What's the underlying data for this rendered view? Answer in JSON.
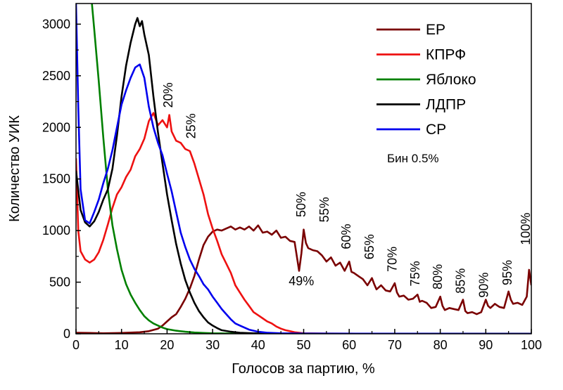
{
  "chart_data": {
    "type": "line",
    "title": "",
    "xlabel": "Голосов за партию, %",
    "ylabel": "Количество УИК",
    "xlim": [
      0,
      100
    ],
    "ylim": [
      0,
      3200
    ],
    "xticks": [
      "0",
      "10",
      "20",
      "30",
      "40",
      "50",
      "60",
      "70",
      "80",
      "90",
      "100"
    ],
    "yticks": [
      "0",
      "500",
      "1000",
      "1500",
      "2000",
      "2500",
      "3000"
    ],
    "grid": false,
    "legend_position": "top-right",
    "bin_note": "Бин 0.5%",
    "series": [
      {
        "name": "ЕР",
        "color": "#7a0000",
        "points": [
          [
            0,
            10
          ],
          [
            3,
            8
          ],
          [
            6,
            5
          ],
          [
            10,
            8
          ],
          [
            14,
            15
          ],
          [
            16,
            25
          ],
          [
            18,
            50
          ],
          [
            19,
            80
          ],
          [
            20,
            120
          ],
          [
            21,
            160
          ],
          [
            22,
            190
          ],
          [
            23,
            260
          ],
          [
            24,
            340
          ],
          [
            25,
            440
          ],
          [
            26,
            560
          ],
          [
            27,
            720
          ],
          [
            28,
            860
          ],
          [
            29,
            940
          ],
          [
            30,
            990
          ],
          [
            31,
            1010
          ],
          [
            32,
            1000
          ],
          [
            33,
            1020
          ],
          [
            34,
            1040
          ],
          [
            35,
            1010
          ],
          [
            36,
            1030
          ],
          [
            37,
            1010
          ],
          [
            38,
            1040
          ],
          [
            39,
            1000
          ],
          [
            40,
            1050
          ],
          [
            41,
            980
          ],
          [
            42,
            990
          ],
          [
            43,
            960
          ],
          [
            44,
            1000
          ],
          [
            45,
            930
          ],
          [
            46,
            940
          ],
          [
            47,
            900
          ],
          [
            48,
            890
          ],
          [
            49,
            610
          ],
          [
            49.5,
            780
          ],
          [
            50,
            1010
          ],
          [
            50.5,
            880
          ],
          [
            51,
            830
          ],
          [
            52,
            810
          ],
          [
            53,
            800
          ],
          [
            54,
            760
          ],
          [
            55,
            700
          ],
          [
            56,
            740
          ],
          [
            57,
            660
          ],
          [
            58,
            690
          ],
          [
            59,
            610
          ],
          [
            60,
            700
          ],
          [
            60.5,
            600
          ],
          [
            61,
            590
          ],
          [
            62,
            560
          ],
          [
            63,
            530
          ],
          [
            64,
            470
          ],
          [
            65,
            540
          ],
          [
            65.5,
            480
          ],
          [
            66,
            430
          ],
          [
            67,
            470
          ],
          [
            68,
            420
          ],
          [
            69,
            410
          ],
          [
            70,
            490
          ],
          [
            70.5,
            400
          ],
          [
            71,
            360
          ],
          [
            72,
            370
          ],
          [
            73,
            330
          ],
          [
            74,
            340
          ],
          [
            75,
            380
          ],
          [
            75.5,
            310
          ],
          [
            76,
            320
          ],
          [
            77,
            300
          ],
          [
            78,
            250
          ],
          [
            79,
            260
          ],
          [
            80,
            360
          ],
          [
            80.5,
            270
          ],
          [
            81,
            230
          ],
          [
            82,
            250
          ],
          [
            83,
            240
          ],
          [
            84,
            230
          ],
          [
            85,
            330
          ],
          [
            85.5,
            220
          ],
          [
            86,
            200
          ],
          [
            87,
            210
          ],
          [
            88,
            190
          ],
          [
            89,
            210
          ],
          [
            90,
            330
          ],
          [
            90.5,
            270
          ],
          [
            91,
            250
          ],
          [
            92,
            290
          ],
          [
            93,
            260
          ],
          [
            94,
            250
          ],
          [
            95,
            410
          ],
          [
            95.5,
            330
          ],
          [
            96,
            290
          ],
          [
            97,
            300
          ],
          [
            98,
            280
          ],
          [
            99,
            360
          ],
          [
            99.5,
            620
          ],
          [
            100,
            470
          ]
        ]
      },
      {
        "name": "КПРФ",
        "color": "#ee1111",
        "points": [
          [
            0,
            1700
          ],
          [
            0.5,
            1000
          ],
          [
            1,
            800
          ],
          [
            2,
            720
          ],
          [
            3,
            690
          ],
          [
            4,
            720
          ],
          [
            5,
            790
          ],
          [
            6,
            910
          ],
          [
            7,
            1060
          ],
          [
            8,
            1220
          ],
          [
            9,
            1350
          ],
          [
            10,
            1420
          ],
          [
            11,
            1520
          ],
          [
            12,
            1590
          ],
          [
            13,
            1720
          ],
          [
            14,
            1790
          ],
          [
            15,
            1890
          ],
          [
            16,
            2060
          ],
          [
            17,
            2140
          ],
          [
            18,
            2020
          ],
          [
            19,
            2070
          ],
          [
            20,
            2000
          ],
          [
            20.5,
            2120
          ],
          [
            21,
            1960
          ],
          [
            22,
            1870
          ],
          [
            23,
            1850
          ],
          [
            24,
            1790
          ],
          [
            25,
            1770
          ],
          [
            26,
            1650
          ],
          [
            27,
            1500
          ],
          [
            28,
            1350
          ],
          [
            29,
            1160
          ],
          [
            30,
            1020
          ],
          [
            31,
            900
          ],
          [
            32,
            770
          ],
          [
            33,
            680
          ],
          [
            34,
            590
          ],
          [
            35,
            470
          ],
          [
            36,
            400
          ],
          [
            37,
            330
          ],
          [
            38,
            270
          ],
          [
            39,
            210
          ],
          [
            40,
            180
          ],
          [
            41,
            150
          ],
          [
            42,
            120
          ],
          [
            43,
            100
          ],
          [
            44,
            70
          ],
          [
            45,
            50
          ],
          [
            46,
            35
          ],
          [
            47,
            25
          ],
          [
            48,
            15
          ],
          [
            50,
            5
          ],
          [
            55,
            2
          ],
          [
            100,
            0
          ]
        ]
      },
      {
        "name": "Яблоко",
        "color": "#008000",
        "points": [
          [
            3.5,
            3200
          ],
          [
            4,
            2950
          ],
          [
            5,
            2450
          ],
          [
            6,
            1900
          ],
          [
            7,
            1400
          ],
          [
            8,
            1050
          ],
          [
            9,
            820
          ],
          [
            10,
            620
          ],
          [
            11,
            480
          ],
          [
            12,
            380
          ],
          [
            13,
            300
          ],
          [
            14,
            230
          ],
          [
            15,
            170
          ],
          [
            16,
            130
          ],
          [
            17,
            100
          ],
          [
            18,
            80
          ],
          [
            19,
            60
          ],
          [
            20,
            45
          ],
          [
            22,
            30
          ],
          [
            24,
            20
          ],
          [
            26,
            12
          ],
          [
            28,
            8
          ],
          [
            30,
            5
          ],
          [
            35,
            2
          ],
          [
            100,
            0
          ]
        ]
      },
      {
        "name": "ЛДПР",
        "color": "#000000",
        "points": [
          [
            0,
            1580
          ],
          [
            1,
            1200
          ],
          [
            2,
            1080
          ],
          [
            3,
            1040
          ],
          [
            4,
            1090
          ],
          [
            5,
            1180
          ],
          [
            6,
            1300
          ],
          [
            7,
            1400
          ],
          [
            8,
            1600
          ],
          [
            9,
            1920
          ],
          [
            10,
            2300
          ],
          [
            11,
            2600
          ],
          [
            12,
            2820
          ],
          [
            13,
            3000
          ],
          [
            13.5,
            3060
          ],
          [
            14,
            2980
          ],
          [
            14.5,
            3030
          ],
          [
            15,
            2900
          ],
          [
            16,
            2700
          ],
          [
            17,
            2300
          ],
          [
            18,
            1950
          ],
          [
            19,
            1650
          ],
          [
            20,
            1350
          ],
          [
            21,
            1100
          ],
          [
            22,
            870
          ],
          [
            23,
            680
          ],
          [
            24,
            520
          ],
          [
            25,
            400
          ],
          [
            26,
            300
          ],
          [
            27,
            220
          ],
          [
            28,
            160
          ],
          [
            29,
            110
          ],
          [
            30,
            80
          ],
          [
            31,
            55
          ],
          [
            32,
            35
          ],
          [
            34,
            20
          ],
          [
            36,
            10
          ],
          [
            40,
            3
          ],
          [
            45,
            0
          ],
          [
            100,
            0
          ]
        ]
      },
      {
        "name": "СР",
        "color": "#0000ee",
        "points": [
          [
            0,
            3200
          ],
          [
            0.5,
            2200
          ],
          [
            1,
            1400
          ],
          [
            2,
            1100
          ],
          [
            3,
            1070
          ],
          [
            4,
            1180
          ],
          [
            5,
            1300
          ],
          [
            6,
            1460
          ],
          [
            7,
            1600
          ],
          [
            8,
            1780
          ],
          [
            9,
            2000
          ],
          [
            10,
            2220
          ],
          [
            11,
            2360
          ],
          [
            12,
            2480
          ],
          [
            13,
            2580
          ],
          [
            14,
            2610
          ],
          [
            15,
            2480
          ],
          [
            16,
            2200
          ],
          [
            17,
            2000
          ],
          [
            18,
            1850
          ],
          [
            19,
            1730
          ],
          [
            20,
            1550
          ],
          [
            21,
            1380
          ],
          [
            22,
            1180
          ],
          [
            23,
            980
          ],
          [
            24,
            840
          ],
          [
            25,
            720
          ],
          [
            26,
            630
          ],
          [
            27,
            560
          ],
          [
            28,
            480
          ],
          [
            29,
            430
          ],
          [
            30,
            360
          ],
          [
            31,
            300
          ],
          [
            32,
            240
          ],
          [
            33,
            190
          ],
          [
            34,
            140
          ],
          [
            35,
            100
          ],
          [
            36,
            80
          ],
          [
            37,
            60
          ],
          [
            38,
            40
          ],
          [
            40,
            20
          ],
          [
            42,
            10
          ],
          [
            45,
            5
          ],
          [
            50,
            2
          ],
          [
            100,
            0
          ]
        ]
      }
    ],
    "annotations": [
      {
        "text": "20%",
        "x": 21.2,
        "y": 2190,
        "angle": -90
      },
      {
        "text": "25%",
        "x": 26.2,
        "y": 1890,
        "angle": -90
      },
      {
        "text": "49%",
        "x": 49.5,
        "y": 470,
        "angle": 0
      },
      {
        "text": "50%",
        "x": 50.4,
        "y": 1130,
        "angle": -90
      },
      {
        "text": "55%",
        "x": 55.5,
        "y": 1080,
        "angle": -90
      },
      {
        "text": "60%",
        "x": 60.3,
        "y": 820,
        "angle": -90
      },
      {
        "text": "65%",
        "x": 65.4,
        "y": 720,
        "angle": -90
      },
      {
        "text": "70%",
        "x": 70.4,
        "y": 600,
        "angle": -90
      },
      {
        "text": "75%",
        "x": 75.4,
        "y": 460,
        "angle": -90
      },
      {
        "text": "80%",
        "x": 80.4,
        "y": 430,
        "angle": -90
      },
      {
        "text": "85%",
        "x": 85.4,
        "y": 390,
        "angle": -90
      },
      {
        "text": "90%",
        "x": 90.5,
        "y": 350,
        "angle": -90
      },
      {
        "text": "95%",
        "x": 95.7,
        "y": 470,
        "angle": -90
      },
      {
        "text": "100%",
        "x": 99.7,
        "y": 860,
        "angle": -90
      }
    ]
  }
}
